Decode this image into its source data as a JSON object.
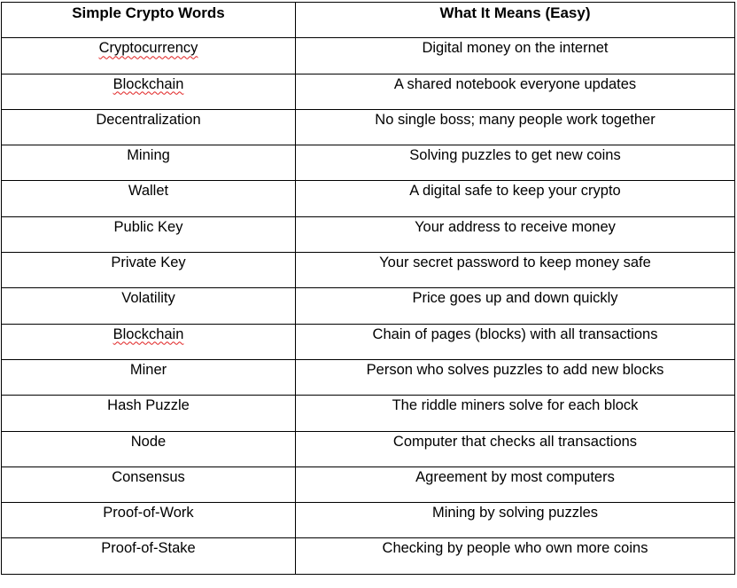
{
  "table": {
    "headers": [
      "Simple Crypto Words",
      "What It Means (Easy)"
    ],
    "rows": [
      {
        "term": "Cryptocurrency",
        "meaning": "Digital money on the internet",
        "spellcheck": true
      },
      {
        "term": "Blockchain",
        "meaning": "A shared notebook everyone updates",
        "spellcheck": true
      },
      {
        "term": "Decentralization",
        "meaning": "No single boss; many people work together",
        "spellcheck": false
      },
      {
        "term": "Mining",
        "meaning": "Solving puzzles to get new coins",
        "spellcheck": false
      },
      {
        "term": "Wallet",
        "meaning": "A digital safe to keep your crypto",
        "spellcheck": false
      },
      {
        "term": "Public Key",
        "meaning": "Your address to receive money",
        "spellcheck": false
      },
      {
        "term": "Private Key",
        "meaning": "Your secret password to keep money safe",
        "spellcheck": false
      },
      {
        "term": "Volatility",
        "meaning": "Price goes up and down quickly",
        "spellcheck": false
      },
      {
        "term": "Blockchain",
        "meaning": "Chain of pages (blocks) with all transactions",
        "spellcheck": true
      },
      {
        "term": "Miner",
        "meaning": "Person who solves puzzles to add new blocks",
        "spellcheck": false
      },
      {
        "term": "Hash Puzzle",
        "meaning": "The riddle miners solve for each block",
        "spellcheck": false
      },
      {
        "term": "Node",
        "meaning": "Computer that checks all transactions",
        "spellcheck": false
      },
      {
        "term": "Consensus",
        "meaning": "Agreement by most computers",
        "spellcheck": false
      },
      {
        "term": "Proof-of-Work",
        "meaning": "Mining by solving puzzles",
        "spellcheck": false
      },
      {
        "term": "Proof-of-Stake",
        "meaning": "Checking by people who own more coins",
        "spellcheck": false
      }
    ]
  },
  "colors": {
    "border": "#000000",
    "spellcheck_underline": "#e02020"
  }
}
